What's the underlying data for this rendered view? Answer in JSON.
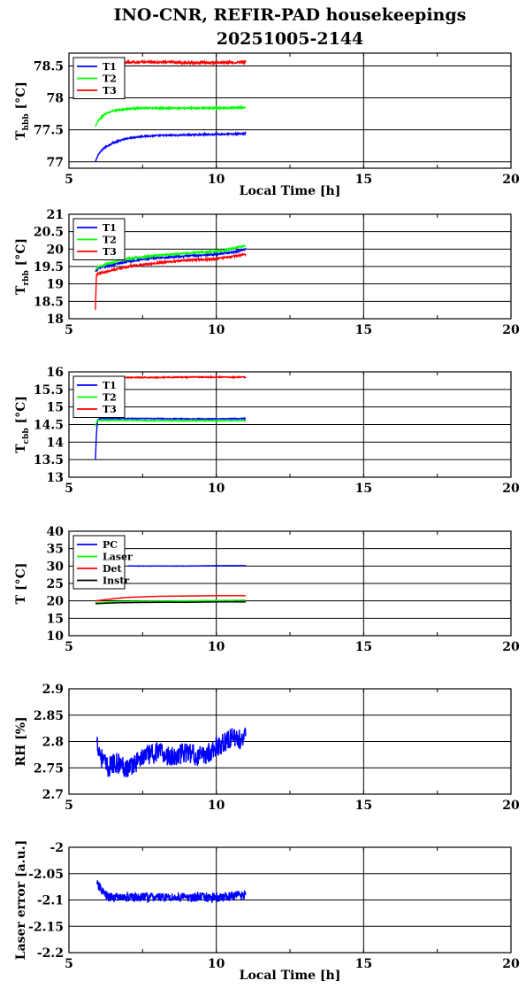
{
  "title": {
    "line1": "INO-CNR, REFIR-PAD housekeepings",
    "line2": "20251005-2144"
  },
  "chart_data": [
    {
      "type": "line",
      "ylabel_main": "T",
      "ylabel_sub": "hbb",
      "ylabel_unit": " [°C]",
      "xlabel": "Local Time [h]",
      "xlim": [
        5,
        20
      ],
      "ylim": [
        76.9,
        78.7
      ],
      "x_ticks": [
        5,
        10,
        15,
        20
      ],
      "y_ticks": [
        77,
        77.5,
        78,
        78.5
      ],
      "grid": true,
      "legend": "top-left",
      "series": [
        {
          "name": "T1",
          "color": "#0000ff",
          "x": [
            5.9,
            6.0,
            6.2,
            6.5,
            7.0,
            7.5,
            8.0,
            9.0,
            10.0,
            11.0
          ],
          "y": [
            77.0,
            77.12,
            77.22,
            77.3,
            77.37,
            77.4,
            77.41,
            77.42,
            77.43,
            77.44
          ],
          "noise": 0.012
        },
        {
          "name": "T2",
          "color": "#00ff00",
          "x": [
            5.9,
            6.0,
            6.2,
            6.5,
            7.0,
            7.5,
            8.0,
            9.0,
            10.0,
            11.0
          ],
          "y": [
            77.55,
            77.65,
            77.74,
            77.8,
            77.83,
            77.84,
            77.84,
            77.84,
            77.84,
            77.85
          ],
          "noise": 0.012
        },
        {
          "name": "T3",
          "color": "#ff0000",
          "x": [
            6.2,
            7.0,
            8.0,
            9.0,
            10.0,
            11.0
          ],
          "y": [
            78.56,
            78.56,
            78.56,
            78.55,
            78.55,
            78.56
          ],
          "noise": 0.018
        }
      ]
    },
    {
      "type": "line",
      "ylabel_main": "T",
      "ylabel_sub": "rbb",
      "ylabel_unit": " [°C]",
      "xlabel": "",
      "xlim": [
        5,
        20
      ],
      "ylim": [
        18,
        21
      ],
      "x_ticks": [
        5,
        10,
        15,
        20
      ],
      "y_ticks": [
        18,
        18.5,
        19,
        19.5,
        20,
        20.5,
        21
      ],
      "grid": true,
      "legend": "top-left",
      "series": [
        {
          "name": "T1",
          "color": "#0000ff",
          "x": [
            5.9,
            6.0,
            6.5,
            7.0,
            8.0,
            9.0,
            10.0,
            10.5,
            11.0
          ],
          "y": [
            19.35,
            19.45,
            19.55,
            19.65,
            19.75,
            19.8,
            19.85,
            19.9,
            20.0
          ],
          "noise": 0.025
        },
        {
          "name": "T2",
          "color": "#00ff00",
          "x": [
            5.9,
            6.0,
            6.5,
            7.0,
            8.0,
            9.0,
            10.0,
            10.5,
            11.0
          ],
          "y": [
            19.4,
            19.5,
            19.62,
            19.72,
            19.82,
            19.88,
            19.93,
            20.0,
            20.1
          ],
          "noise": 0.025
        },
        {
          "name": "T3",
          "color": "#ff0000",
          "x": [
            5.9,
            5.93,
            6.0,
            6.5,
            7.0,
            8.0,
            9.0,
            10.0,
            10.5,
            11.0
          ],
          "y": [
            18.25,
            19.25,
            19.3,
            19.4,
            19.5,
            19.6,
            19.68,
            19.72,
            19.78,
            19.85
          ],
          "noise": 0.025
        }
      ]
    },
    {
      "type": "line",
      "ylabel_main": "T",
      "ylabel_sub": "cbb",
      "ylabel_unit": " [°C]",
      "xlabel": "",
      "xlim": [
        5,
        20
      ],
      "ylim": [
        13,
        16
      ],
      "x_ticks": [
        5,
        10,
        15,
        20
      ],
      "y_ticks": [
        13,
        13.5,
        14,
        14.5,
        15,
        15.5,
        16
      ],
      "grid": true,
      "legend": "top-left",
      "series": [
        {
          "name": "T1",
          "color": "#0000ff",
          "x": [
            5.9,
            5.93,
            5.97,
            6.05,
            7.0,
            8.0,
            9.0,
            10.0,
            11.0
          ],
          "y": [
            13.5,
            14.2,
            14.62,
            14.67,
            14.67,
            14.67,
            14.66,
            14.66,
            14.67
          ],
          "noise": 0.012
        },
        {
          "name": "T2",
          "color": "#00ff00",
          "x": [
            5.9,
            5.95,
            6.05,
            7.0,
            8.0,
            9.0,
            10.0,
            11.0
          ],
          "y": [
            14.45,
            14.6,
            14.62,
            14.62,
            14.61,
            14.61,
            14.61,
            14.61
          ],
          "noise": 0.012
        },
        {
          "name": "T3",
          "color": "#ff0000",
          "x": [
            6.5,
            7.0,
            8.0,
            9.0,
            10.0,
            11.0
          ],
          "y": [
            15.83,
            15.84,
            15.84,
            15.85,
            15.85,
            15.85
          ],
          "noise": 0.015
        }
      ]
    },
    {
      "type": "line",
      "ylabel_main": "T",
      "ylabel_sub": "",
      "ylabel_unit": " [°C]",
      "xlabel": "",
      "xlim": [
        5,
        20
      ],
      "ylim": [
        10,
        40
      ],
      "x_ticks": [
        5,
        10,
        15,
        20
      ],
      "y_ticks": [
        10,
        15,
        20,
        25,
        30,
        35,
        40
      ],
      "grid": true,
      "legend": "top-left",
      "series": [
        {
          "name": "PC",
          "color": "#0000ff",
          "x": [
            7.0,
            8.0,
            9.0,
            10.0,
            11.0
          ],
          "y": [
            30.0,
            30.0,
            30.0,
            30.1,
            30.1
          ],
          "noise": 0.05
        },
        {
          "name": "Laser",
          "color": "#00ff00",
          "x": [
            5.9,
            6.5,
            7.0,
            8.0,
            9.0,
            10.0,
            11.0
          ],
          "y": [
            19.5,
            19.7,
            19.8,
            19.9,
            20.0,
            20.1,
            20.2
          ],
          "noise": 0.04
        },
        {
          "name": "Det",
          "color": "#ff0000",
          "x": [
            5.9,
            6.5,
            7.0,
            8.0,
            9.0,
            10.0,
            11.0
          ],
          "y": [
            20.0,
            20.6,
            21.0,
            21.3,
            21.4,
            21.5,
            21.5
          ],
          "noise": 0.04
        },
        {
          "name": "Instr",
          "color": "#000000",
          "x": [
            5.9,
            6.5,
            7.0,
            8.0,
            9.0,
            10.0,
            11.0
          ],
          "y": [
            19.2,
            19.4,
            19.5,
            19.6,
            19.6,
            19.7,
            19.7
          ],
          "noise": 0.03
        }
      ]
    },
    {
      "type": "line",
      "ylabel_main": "RH [%]",
      "ylabel_sub": "",
      "ylabel_unit": "",
      "xlabel": "",
      "xlim": [
        5,
        20
      ],
      "ylim": [
        2.7,
        2.9
      ],
      "x_ticks": [
        5,
        10,
        15,
        20
      ],
      "y_ticks": [
        2.7,
        2.75,
        2.8,
        2.85,
        2.9
      ],
      "grid": true,
      "legend": "none",
      "series": [
        {
          "name": "",
          "color": "#0000ff",
          "x": [
            5.95,
            6.1,
            6.3,
            6.6,
            7.0,
            7.5,
            8.0,
            8.5,
            9.0,
            9.5,
            10.0,
            10.3,
            10.6,
            10.9,
            11.0
          ],
          "y": [
            2.8,
            2.77,
            2.75,
            2.76,
            2.75,
            2.77,
            2.78,
            2.77,
            2.78,
            2.77,
            2.79,
            2.8,
            2.81,
            2.8,
            2.81
          ],
          "noise": 0.02
        }
      ]
    },
    {
      "type": "line",
      "ylabel_main": "Laser error [a.u.]",
      "ylabel_sub": "",
      "ylabel_unit": "",
      "xlabel": "Local Time [h]",
      "xlim": [
        5,
        20
      ],
      "ylim": [
        -2.2,
        -2.0
      ],
      "x_ticks": [
        5,
        10,
        15,
        20
      ],
      "y_ticks": [
        -2.2,
        -2.15,
        -2.1,
        -2.05,
        -2.0
      ],
      "grid": true,
      "legend": "none",
      "series": [
        {
          "name": "",
          "color": "#0000ff",
          "x": [
            5.95,
            6.1,
            6.3,
            7.0,
            8.0,
            9.0,
            10.0,
            11.0
          ],
          "y": [
            -2.07,
            -2.08,
            -2.095,
            -2.095,
            -2.095,
            -2.095,
            -2.095,
            -2.09
          ],
          "noise": 0.009
        }
      ]
    }
  ]
}
